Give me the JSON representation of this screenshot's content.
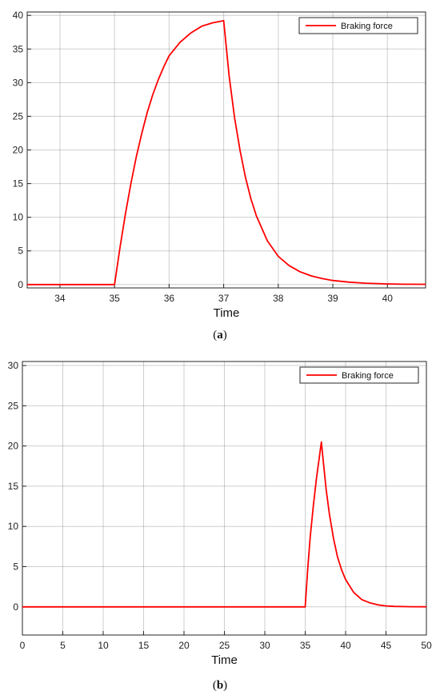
{
  "chart_data": [
    {
      "type": "line",
      "caption_pre": "(",
      "caption_letter": "a",
      "caption_post": ")",
      "xlabel": "Time",
      "ylabel": "",
      "xlim": [
        33.4,
        40.7
      ],
      "ylim": [
        -0.5,
        40.5
      ],
      "xticks": [
        34,
        35,
        36,
        37,
        38,
        39,
        40
      ],
      "yticks": [
        0,
        5,
        10,
        15,
        20,
        25,
        30,
        35,
        40
      ],
      "grid": true,
      "legend_position": "top-right",
      "series": [
        {
          "name": "Braking force",
          "color": "#ff0000",
          "x": [
            33.4,
            35.0,
            35.1,
            35.2,
            35.3,
            35.4,
            35.5,
            35.6,
            35.7,
            35.8,
            35.9,
            36.0,
            36.2,
            36.4,
            36.6,
            36.8,
            37.0,
            37.1,
            37.2,
            37.3,
            37.4,
            37.5,
            37.6,
            37.8,
            38.0,
            38.2,
            38.4,
            38.6,
            38.8,
            39.0,
            39.3,
            39.6,
            40.0,
            40.3,
            40.7
          ],
          "y": [
            0,
            0,
            5.5,
            10.5,
            15.0,
            19.0,
            22.5,
            25.6,
            28.2,
            30.4,
            32.3,
            34.0,
            36.0,
            37.4,
            38.4,
            38.9,
            39.2,
            31.0,
            24.8,
            19.9,
            15.9,
            12.7,
            10.2,
            6.5,
            4.2,
            2.8,
            1.9,
            1.3,
            0.9,
            0.6,
            0.35,
            0.2,
            0.1,
            0.05,
            0.03
          ]
        }
      ]
    },
    {
      "type": "line",
      "caption_pre": "(",
      "caption_letter": "b",
      "caption_post": ")",
      "xlabel": "Time",
      "ylabel": "",
      "xlim": [
        0,
        50
      ],
      "ylim": [
        -3.5,
        30.5
      ],
      "xticks": [
        0,
        5,
        10,
        15,
        20,
        25,
        30,
        35,
        40,
        45,
        50
      ],
      "yticks": [
        0,
        5,
        10,
        15,
        20,
        25,
        30
      ],
      "grid": true,
      "legend_position": "top-right",
      "series": [
        {
          "name": "Braking force",
          "color": "#ff0000",
          "x": [
            0,
            35.0,
            35.3,
            35.6,
            36.0,
            36.4,
            36.8,
            37.0,
            37.3,
            37.6,
            38.0,
            38.5,
            39.0,
            39.5,
            40.0,
            41.0,
            42.0,
            43.0,
            44.0,
            45.0,
            46.0,
            48.0,
            50.0
          ],
          "y": [
            0,
            0,
            4.5,
            8.5,
            12.5,
            16.0,
            19.0,
            20.5,
            17.5,
            14.5,
            11.5,
            8.5,
            6.2,
            4.6,
            3.4,
            1.8,
            0.9,
            0.5,
            0.25,
            0.12,
            0.06,
            0.02,
            0.01
          ]
        }
      ]
    }
  ]
}
